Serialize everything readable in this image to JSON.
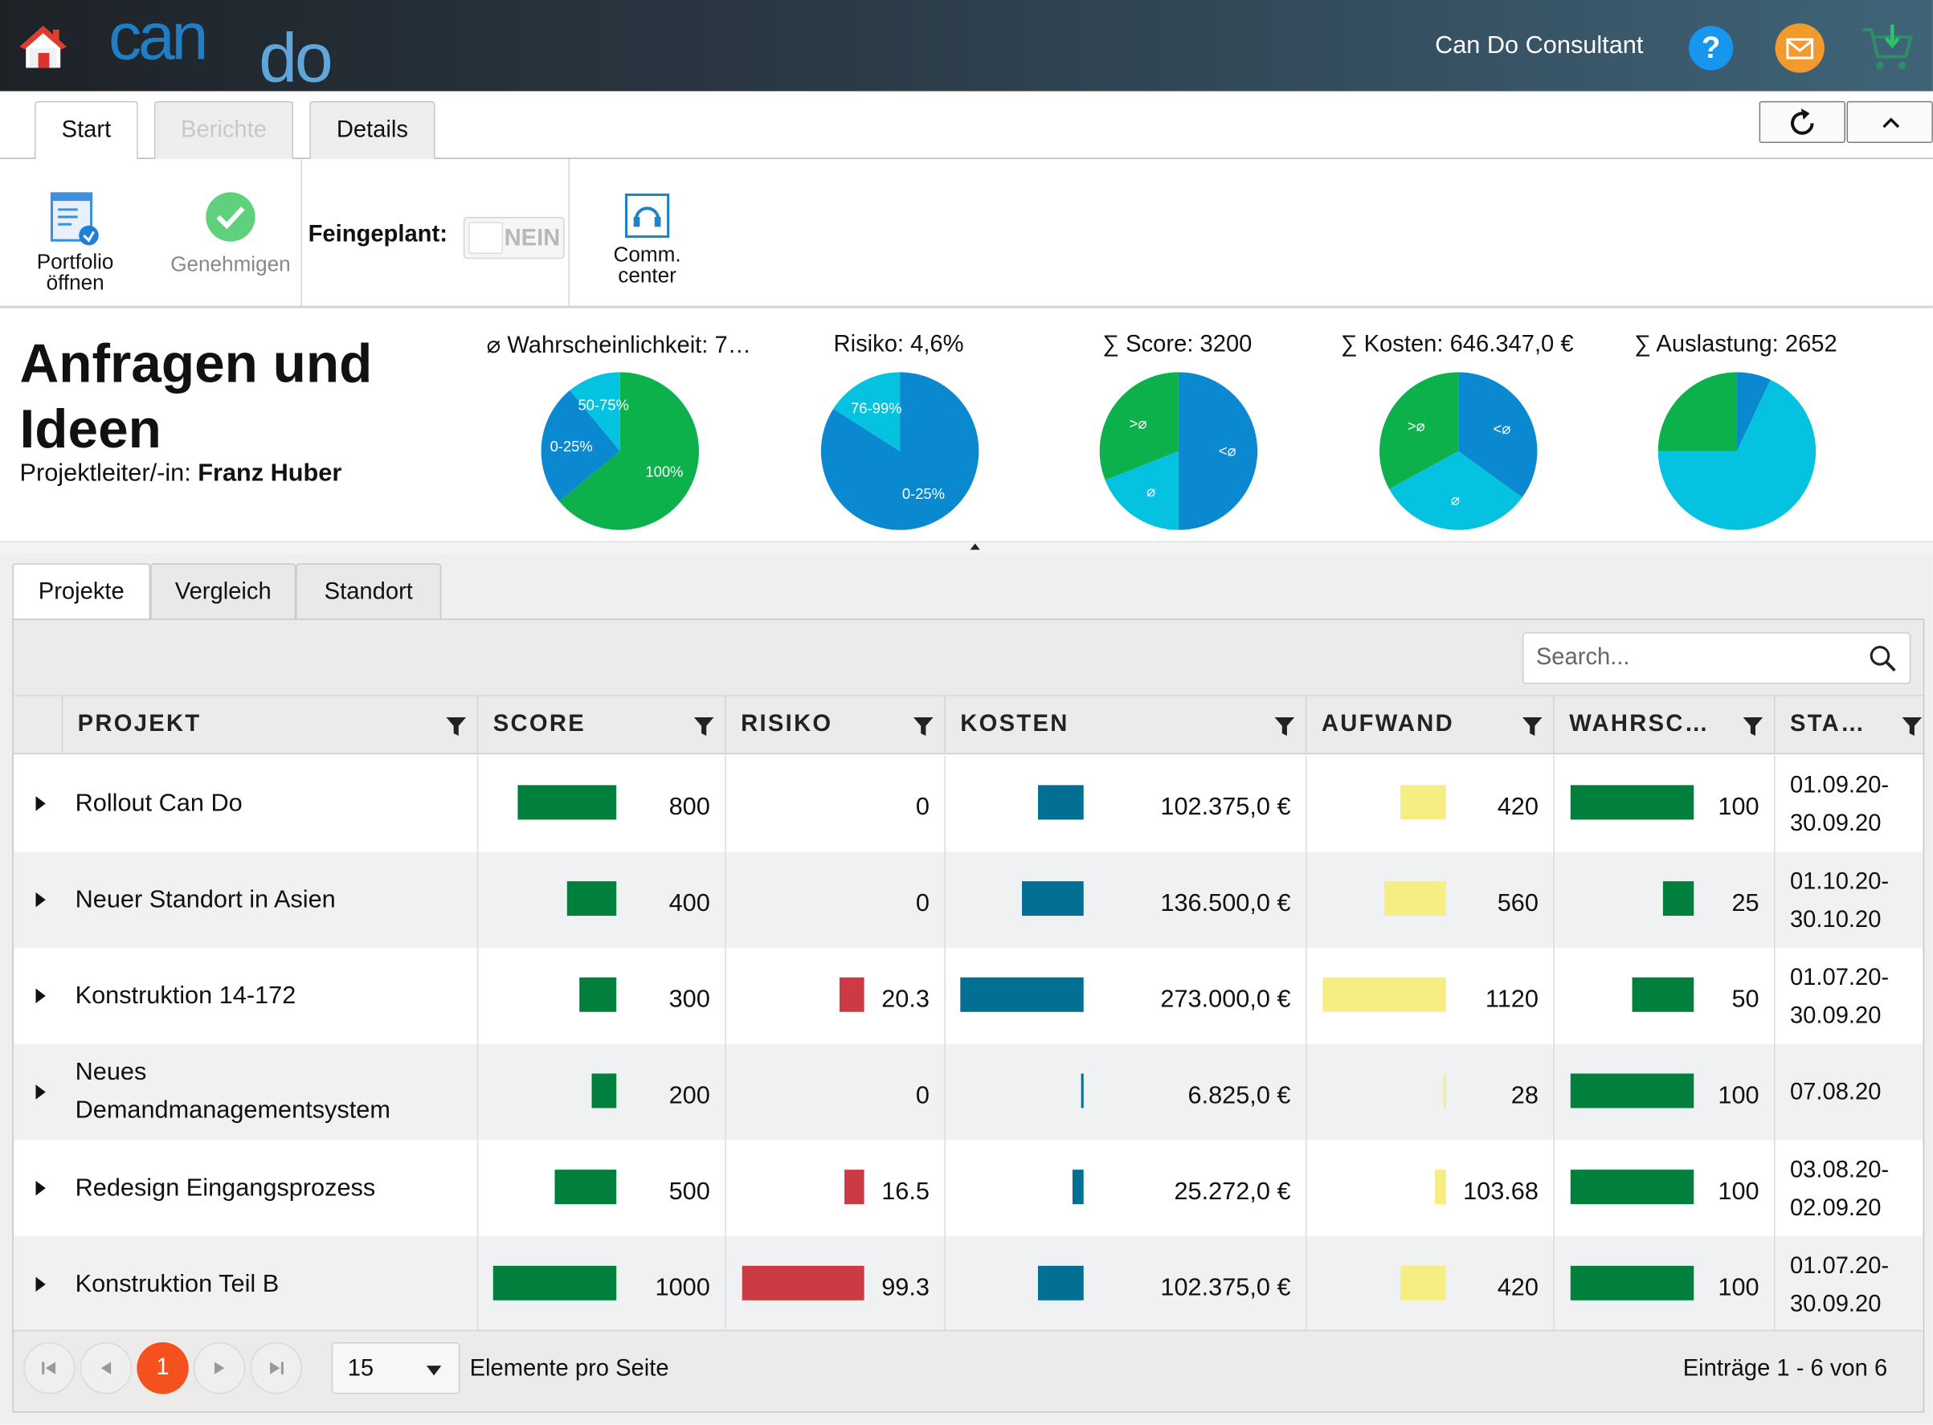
{
  "header": {
    "consultant": "Can Do Consultant",
    "help_glyph": "?",
    "icons": [
      "home-icon",
      "cando-logo",
      "help-icon",
      "mail-icon",
      "cart-icon"
    ]
  },
  "ribbon": {
    "tabs": [
      {
        "label": "Start",
        "active": true,
        "enabled": true
      },
      {
        "label": "Berichte",
        "active": false,
        "enabled": false
      },
      {
        "label": "Details",
        "active": false,
        "enabled": true
      }
    ],
    "right_buttons": [
      "refresh-icon",
      "collapse-icon"
    ],
    "toolbar": {
      "portfolio_line1": "Portfolio",
      "portfolio_line2": "öffnen",
      "approve": "Genehmigen",
      "feingeplant_label": "Feingeplant:",
      "feingeplant_value": "NEIN",
      "comm_line1": "Comm.",
      "comm_line2": "center"
    }
  },
  "summary": {
    "title": "Anfragen und Ideen",
    "pm_label": "Projektleiter/-in:",
    "pm_name": "Franz Huber",
    "kpis": [
      {
        "label": "⌀ Wahrscheinlichkeit: 7…"
      },
      {
        "label": "Risiko: 4,6%"
      },
      {
        "label": "∑ Score: 3200"
      },
      {
        "label": "∑ Kosten: 646.347,0 €"
      },
      {
        "label": "∑ Auslastung: 2652"
      }
    ]
  },
  "colors": {
    "pie_green": "#0db14b",
    "pie_blue": "#0a88d0",
    "pie_cyan": "#05c2e0",
    "score_bar": "#00803c",
    "risk_bar": "#cc3a44",
    "cost_bar": "#026f93",
    "effort_bar": "#f6ee82",
    "prob_bar": "#00803c",
    "pager_active": "#f4511e"
  },
  "chart_data": [
    {
      "type": "pie",
      "slices": [
        {
          "label": "100%",
          "value": 64,
          "color": "#0db14b"
        },
        {
          "label": "0-25%",
          "value": 25,
          "color": "#0a88d0"
        },
        {
          "label": "50-75%",
          "value": 11,
          "color": "#05c2e0"
        }
      ]
    },
    {
      "type": "pie",
      "slices": [
        {
          "label": "0-25%",
          "value": 84,
          "color": "#0a88d0"
        },
        {
          "label": "76-99%",
          "value": 16,
          "color": "#05c2e0"
        }
      ]
    },
    {
      "type": "pie",
      "slices": [
        {
          "label": "<⌀",
          "value": 50,
          "color": "#0a88d0"
        },
        {
          "label": "⌀",
          "value": 19,
          "color": "#05c2e0"
        },
        {
          "label": ">⌀",
          "value": 31,
          "color": "#0db14b"
        }
      ]
    },
    {
      "type": "pie",
      "slices": [
        {
          "label": "<⌀",
          "value": 35,
          "color": "#0a88d0"
        },
        {
          "label": "⌀",
          "value": 32,
          "color": "#05c2e0"
        },
        {
          "label": ">⌀",
          "value": 33,
          "color": "#0db14b"
        }
      ]
    },
    {
      "type": "pie",
      "slices": [
        {
          "label": "",
          "value": 7,
          "color": "#0a88d0"
        },
        {
          "label": "",
          "value": 68,
          "color": "#05c2e0"
        },
        {
          "label": "",
          "value": 25,
          "color": "#0db14b"
        }
      ]
    }
  ],
  "lower_tabs": [
    {
      "label": "Projekte",
      "active": true
    },
    {
      "label": "Vergleich",
      "active": false
    },
    {
      "label": "Standort",
      "active": false
    }
  ],
  "grid": {
    "search_placeholder": "Search...",
    "columns": [
      "PROJEKT",
      "SCORE",
      "RISIKO",
      "KOSTEN",
      "AUFWAND",
      "WAHRSC…",
      "STA…"
    ],
    "rows": [
      {
        "name": "Rollout Can Do",
        "score": 800,
        "score_text": "800",
        "risk": 0,
        "risk_text": "0",
        "cost": 102375,
        "cost_text": "102.375,0 €",
        "effort": 420,
        "effort_text": "420",
        "prob": 100,
        "prob_text": "100",
        "date1": "01.09.20-",
        "date2": "30.09.20"
      },
      {
        "name": "Neuer Standort in Asien",
        "score": 400,
        "score_text": "400",
        "risk": 0,
        "risk_text": "0",
        "cost": 136500,
        "cost_text": "136.500,0 €",
        "effort": 560,
        "effort_text": "560",
        "prob": 25,
        "prob_text": "25",
        "date1": "01.10.20-",
        "date2": "30.10.20"
      },
      {
        "name": "Konstruktion 14-172",
        "score": 300,
        "score_text": "300",
        "risk": 20.3,
        "risk_text": "20.3",
        "cost": 273000,
        "cost_text": "273.000,0 €",
        "effort": 1120,
        "effort_text": "1120",
        "prob": 50,
        "prob_text": "50",
        "date1": "01.07.20-",
        "date2": "30.09.20"
      },
      {
        "name": "Neues Demandmanagementsystem",
        "score": 200,
        "score_text": "200",
        "risk": 0,
        "risk_text": "0",
        "cost": 6825,
        "cost_text": "6.825,0 €",
        "effort": 28,
        "effort_text": "28",
        "prob": 100,
        "prob_text": "100",
        "date1": "07.08.20",
        "date2": ""
      },
      {
        "name": "Redesign Eingangsprozess",
        "score": 500,
        "score_text": "500",
        "risk": 16.5,
        "risk_text": "16.5",
        "cost": 25272,
        "cost_text": "25.272,0 €",
        "effort": 103.68,
        "effort_text": "103.68",
        "prob": 100,
        "prob_text": "100",
        "date1": "03.08.20-",
        "date2": "02.09.20"
      },
      {
        "name": "Konstruktion Teil B",
        "score": 1000,
        "score_text": "1000",
        "risk": 99.3,
        "risk_text": "99.3",
        "cost": 102375,
        "cost_text": "102.375,0 €",
        "effort": 420,
        "effort_text": "420",
        "prob": 100,
        "prob_text": "100",
        "date1": "01.07.20-",
        "date2": "30.09.20"
      }
    ]
  },
  "pager": {
    "current_page": "1",
    "page_size": "15",
    "page_size_label": "Elemente pro Seite",
    "info": "Einträge 1 - 6 von 6"
  }
}
